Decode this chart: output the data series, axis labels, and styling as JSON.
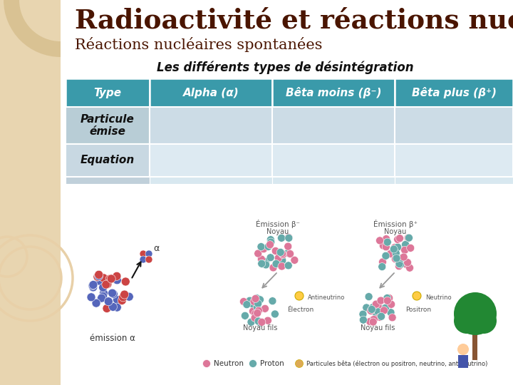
{
  "title": "Radioactivité et réactions nucléaires",
  "subtitle": "Réactions nucléaires spontanées",
  "section_title": "Les différents types de désintégration",
  "bg_left_color": "#e8d5b0",
  "header_color": "#3a9aaa",
  "header_text_color": "#ffffff",
  "row1_col0_color": "#b8cdd6",
  "row1_col_color": "#ccdce6",
  "row2_col0_color": "#c8d8e2",
  "row2_col_color": "#ddeaf2",
  "strip_col0_color": "#c0d0da",
  "strip_col_color": "#d8e8f0",
  "table_headers": [
    "Type",
    "Alpha (α)",
    "Bêta moins (β⁻)",
    "Bêta plus (β⁺)"
  ],
  "row1_label": "Particule\némise",
  "row2_label": "Equation",
  "title_color": "#4a1500",
  "subtitle_color": "#4a1500",
  "section_title_color": "#111111",
  "nucleus_red": "#cc4444",
  "nucleus_blue": "#5566bb",
  "nucleus_pink": "#dd7799",
  "nucleus_teal": "#66aaaa"
}
